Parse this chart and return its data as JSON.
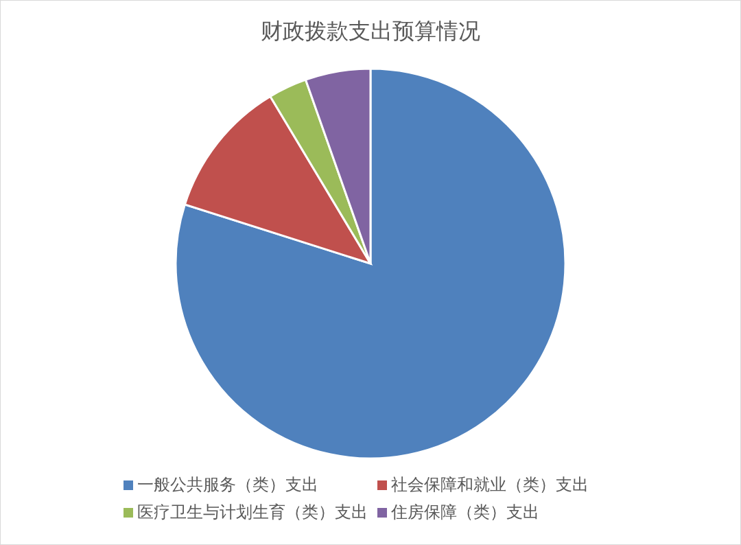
{
  "chart_data": {
    "type": "pie",
    "title": "财政拨款支出预算情况",
    "categories": [
      "一般公共服务（类）支出",
      "社会保障和就业（类）支出",
      "医疗卫生与计划生育（类）支出",
      "住房保障（类）支出"
    ],
    "values": [
      79.9,
      11.5,
      3.2,
      5.4
    ],
    "colors": [
      "#4f81bd",
      "#c0504d",
      "#9bbb59",
      "#8064a2"
    ],
    "legend": "bottom"
  }
}
